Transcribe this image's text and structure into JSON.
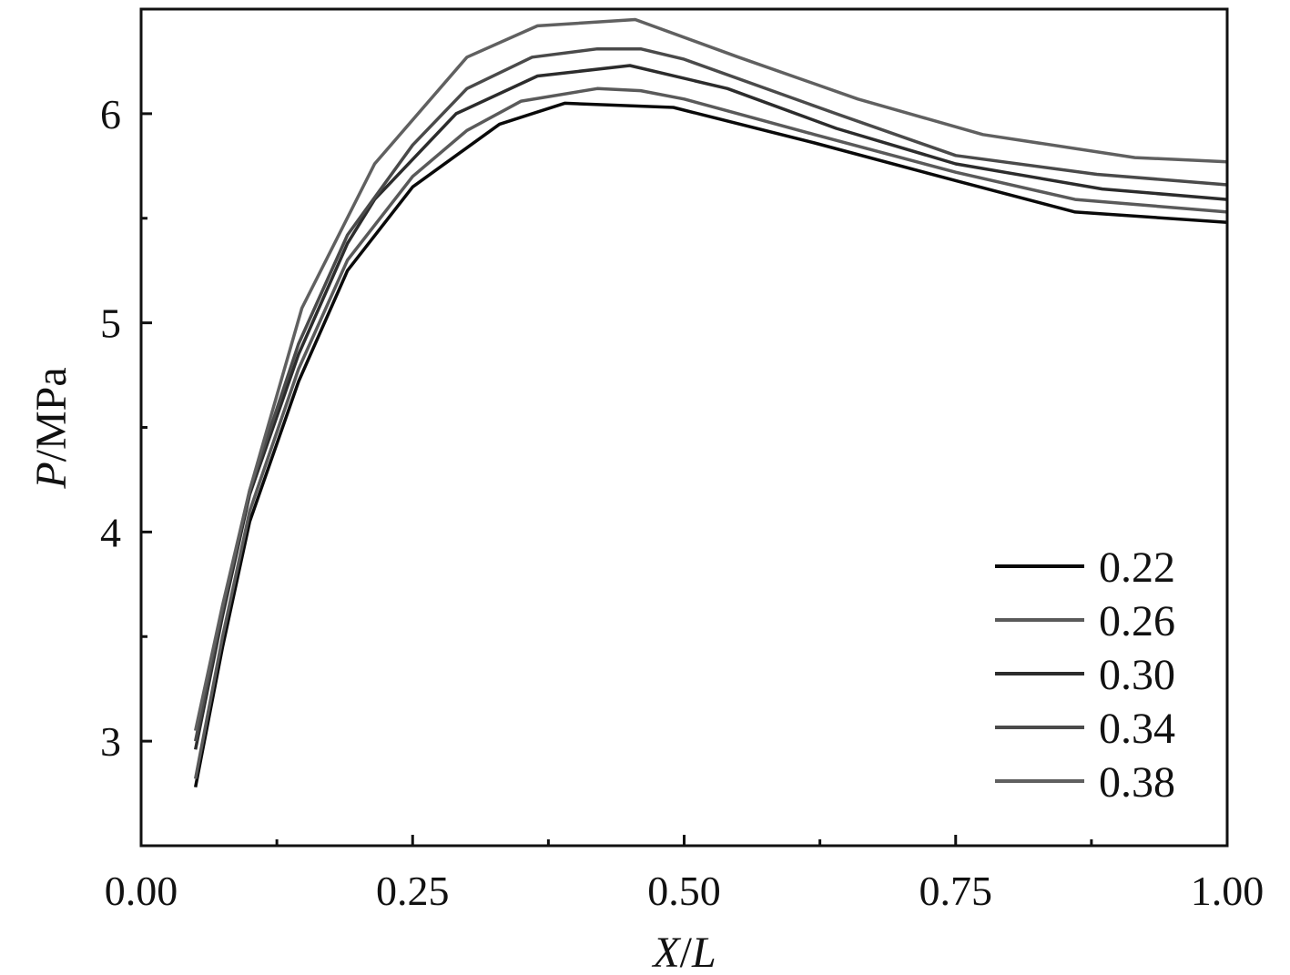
{
  "chart_data": {
    "type": "line",
    "title": "",
    "xlabel_italic": "X",
    "xlabel_sep": "/",
    "xlabel_italic2": "L",
    "ylabel_italic": "P",
    "ylabel_rest": "/MPa",
    "xlim": [
      0.0,
      1.0
    ],
    "ylim": [
      2.5,
      6.5
    ],
    "xticks": [
      0.0,
      0.25,
      0.5,
      0.75,
      1.0
    ],
    "xtick_labels": [
      "0.00",
      "0.25",
      "0.50",
      "0.75",
      "1.00"
    ],
    "xminor": [
      0.125,
      0.375,
      0.625,
      0.875
    ],
    "yticks": [
      3,
      4,
      5,
      6
    ],
    "ytick_labels": [
      "3",
      "4",
      "5",
      "6"
    ],
    "yminor": [
      3.5,
      4.5,
      5.5
    ],
    "grid": false,
    "legend_position": "bottom-right",
    "series": [
      {
        "name": "0.22",
        "color": "#0a0a0a",
        "x": [
          0.05,
          0.075,
          0.1,
          0.145,
          0.19,
          0.25,
          0.33,
          0.39,
          0.49,
          0.62,
          0.75,
          0.86,
          1.0
        ],
        "y": [
          2.78,
          3.45,
          4.05,
          4.72,
          5.25,
          5.65,
          5.95,
          6.05,
          6.03,
          5.86,
          5.68,
          5.53,
          5.48
        ]
      },
      {
        "name": "0.26",
        "color": "#5a5a5a",
        "x": [
          0.05,
          0.075,
          0.1,
          0.145,
          0.19,
          0.25,
          0.3,
          0.35,
          0.42,
          0.46,
          0.5,
          0.62,
          0.75,
          0.86,
          1.0
        ],
        "y": [
          2.82,
          3.5,
          4.1,
          4.78,
          5.3,
          5.7,
          5.92,
          6.06,
          6.12,
          6.11,
          6.07,
          5.9,
          5.72,
          5.59,
          5.53
        ]
      },
      {
        "name": "0.30",
        "color": "#2c2c2c",
        "x": [
          0.05,
          0.075,
          0.1,
          0.145,
          0.19,
          0.215,
          0.29,
          0.365,
          0.45,
          0.54,
          0.64,
          0.75,
          0.885,
          1.0
        ],
        "y": [
          2.96,
          3.6,
          4.18,
          4.85,
          5.38,
          5.59,
          6.0,
          6.18,
          6.23,
          6.12,
          5.93,
          5.76,
          5.64,
          5.59
        ]
      },
      {
        "name": "0.34",
        "color": "#4a4a4a",
        "x": [
          0.05,
          0.075,
          0.1,
          0.145,
          0.19,
          0.25,
          0.3,
          0.36,
          0.42,
          0.46,
          0.5,
          0.64,
          0.75,
          0.88,
          1.0
        ],
        "y": [
          3.0,
          3.63,
          4.2,
          4.9,
          5.42,
          5.85,
          6.12,
          6.27,
          6.31,
          6.31,
          6.26,
          6.0,
          5.8,
          5.71,
          5.66
        ]
      },
      {
        "name": "0.38",
        "color": "#606060",
        "x": [
          0.05,
          0.075,
          0.1,
          0.148,
          0.215,
          0.3,
          0.365,
          0.455,
          0.55,
          0.66,
          0.775,
          0.915,
          1.0
        ],
        "y": [
          3.05,
          3.65,
          4.2,
          5.07,
          5.76,
          6.27,
          6.42,
          6.45,
          6.27,
          6.07,
          5.9,
          5.79,
          5.77
        ]
      }
    ]
  }
}
